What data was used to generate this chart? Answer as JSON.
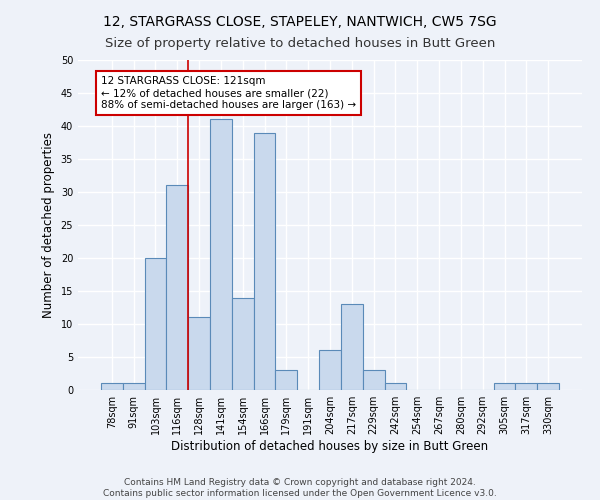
{
  "title1": "12, STARGRASS CLOSE, STAPELEY, NANTWICH, CW5 7SG",
  "title2": "Size of property relative to detached houses in Butt Green",
  "xlabel": "Distribution of detached houses by size in Butt Green",
  "ylabel": "Number of detached properties",
  "categories": [
    "78sqm",
    "91sqm",
    "103sqm",
    "116sqm",
    "128sqm",
    "141sqm",
    "154sqm",
    "166sqm",
    "179sqm",
    "191sqm",
    "204sqm",
    "217sqm",
    "229sqm",
    "242sqm",
    "254sqm",
    "267sqm",
    "280sqm",
    "292sqm",
    "305sqm",
    "317sqm",
    "330sqm"
  ],
  "values": [
    1,
    1,
    20,
    31,
    11,
    41,
    14,
    39,
    3,
    0,
    6,
    13,
    3,
    1,
    0,
    0,
    0,
    0,
    1,
    1,
    1
  ],
  "bar_color": "#c9d9ed",
  "bar_edge_color": "#5a8ab8",
  "annotation_text_line1": "12 STARGRASS CLOSE: 121sqm",
  "annotation_text_line2": "← 12% of detached houses are smaller (22)",
  "annotation_text_line3": "88% of semi-detached houses are larger (163) →",
  "annotation_box_color": "#ffffff",
  "annotation_box_edge": "#cc0000",
  "vline_color": "#cc0000",
  "vline_x_index": 3.5,
  "ylim": [
    0,
    50
  ],
  "yticks": [
    0,
    5,
    10,
    15,
    20,
    25,
    30,
    35,
    40,
    45,
    50
  ],
  "footer1": "Contains HM Land Registry data © Crown copyright and database right 2024.",
  "footer2": "Contains public sector information licensed under the Open Government Licence v3.0.",
  "bg_color": "#eef2f9",
  "grid_color": "#ffffff",
  "title1_fontsize": 10,
  "title2_fontsize": 9.5,
  "xlabel_fontsize": 8.5,
  "ylabel_fontsize": 8.5,
  "tick_fontsize": 7,
  "footer_fontsize": 6.5,
  "ann_fontsize": 7.5
}
